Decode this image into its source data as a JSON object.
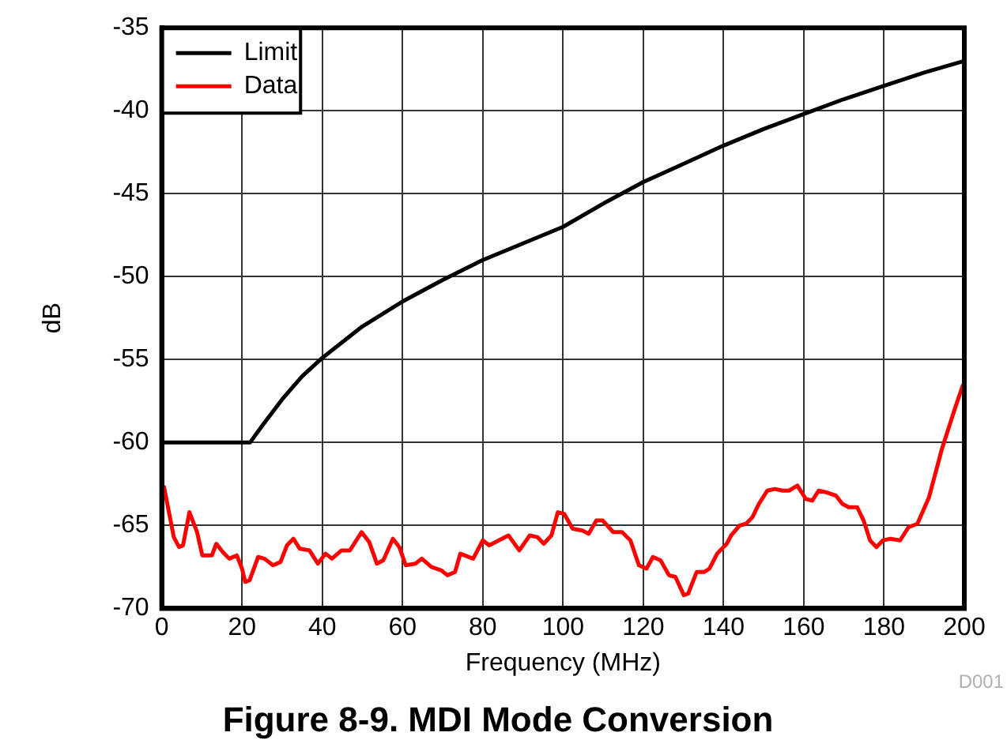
{
  "chart_data": {
    "type": "line",
    "title": "Figure 8-9. MDI Mode Conversion",
    "xlabel": "Frequency (MHz)",
    "ylabel": "dB",
    "annotations": [
      "D001"
    ],
    "xlim": [
      0,
      200
    ],
    "xticks": [
      0,
      20,
      40,
      60,
      80,
      100,
      120,
      140,
      160,
      180,
      200
    ],
    "ylim": [
      -70,
      -35
    ],
    "yticks": [
      -70,
      -65,
      -60,
      -55,
      -50,
      -45,
      -40,
      -35
    ],
    "grid": true,
    "legend": "top left",
    "marker": "none",
    "series": [
      {
        "name": "Limit",
        "color": "#000000",
        "x": [
          0,
          22,
          25,
          30,
          35,
          40,
          50,
          60,
          70,
          80,
          90,
          100,
          110,
          120,
          130,
          140,
          150,
          160,
          170,
          180,
          190,
          200
        ],
        "values": [
          -60,
          -60,
          -59,
          -57.4,
          -56,
          -54.9,
          -53,
          -51.5,
          -50.2,
          -49,
          -48,
          -47,
          -45.6,
          -44.3,
          -43.2,
          -42.1,
          -41.1,
          -40.2,
          -39.3,
          -38.5,
          -37.7,
          -37
        ]
      },
      {
        "name": "Data",
        "color": "#ff0000",
        "x": [
          0.5,
          3,
          4.3,
          5.3,
          6.9,
          8.8,
          10.1,
          11.2,
          12.5,
          13.6,
          15.2,
          16.8,
          18.7,
          20,
          20.8,
          21.9,
          24,
          25.6,
          27.7,
          29.6,
          31.2,
          32.8,
          34.4,
          36.8,
          38.9,
          40.8,
          42.4,
          44.8,
          46.9,
          49.8,
          51.7,
          53.6,
          55.2,
          57.6,
          59.2,
          60.8,
          63.2,
          64.8,
          67.2,
          69.6,
          71.2,
          73.1,
          74.4,
          77.6,
          80,
          81.6,
          84,
          86.4,
          89.1,
          91.7,
          93.6,
          95.2,
          97.1,
          98.7,
          100.3,
          102.4,
          104.8,
          106.4,
          108.3,
          109.9,
          112.5,
          114.7,
          116.8,
          118.9,
          120.8,
          122.4,
          124.3,
          126.4,
          128,
          130.1,
          131.2,
          133.3,
          135.2,
          136.5,
          138.4,
          140.8,
          141.9,
          144,
          145.6,
          147.2,
          148.8,
          150.9,
          152.8,
          154.7,
          156.3,
          158.4,
          160.5,
          162.1,
          163.7,
          165.6,
          168,
          169.6,
          171.2,
          173.3,
          174.9,
          176.5,
          178.1,
          179.7,
          181.6,
          184,
          186.1,
          188.3,
          191.2,
          194.4,
          197.6,
          199.7
        ],
        "values": [
          -62.6,
          -65.7,
          -66.3,
          -66.2,
          -64.2,
          -65.4,
          -66.8,
          -66.8,
          -66.8,
          -66.1,
          -66.6,
          -67,
          -66.8,
          -67.6,
          -68.4,
          -68.3,
          -66.9,
          -67,
          -67.4,
          -67.2,
          -66.2,
          -65.8,
          -66.4,
          -66.5,
          -67.3,
          -66.7,
          -67,
          -66.5,
          -66.5,
          -65.4,
          -66,
          -67.3,
          -67.1,
          -65.8,
          -66.3,
          -67.4,
          -67.3,
          -67,
          -67.5,
          -67.7,
          -68,
          -67.8,
          -66.7,
          -67,
          -65.9,
          -66.2,
          -65.9,
          -65.6,
          -66.5,
          -65.6,
          -65.7,
          -66.1,
          -65.6,
          -64.2,
          -64.3,
          -65.2,
          -65.3,
          -65.5,
          -64.7,
          -64.7,
          -65.4,
          -65.4,
          -65.9,
          -67.4,
          -67.6,
          -66.9,
          -67.1,
          -68,
          -68.1,
          -69.2,
          -69.1,
          -67.8,
          -67.8,
          -67.6,
          -66.7,
          -66.1,
          -65.6,
          -65,
          -64.9,
          -64.5,
          -63.7,
          -62.9,
          -62.8,
          -62.9,
          -62.9,
          -62.6,
          -63.4,
          -63.5,
          -62.9,
          -63,
          -63.2,
          -63.7,
          -63.9,
          -63.9,
          -64.7,
          -65.9,
          -66.3,
          -65.9,
          -65.8,
          -65.9,
          -65.1,
          -64.9,
          -63.3,
          -60.4,
          -58,
          -56.5
        ]
      }
    ]
  }
}
